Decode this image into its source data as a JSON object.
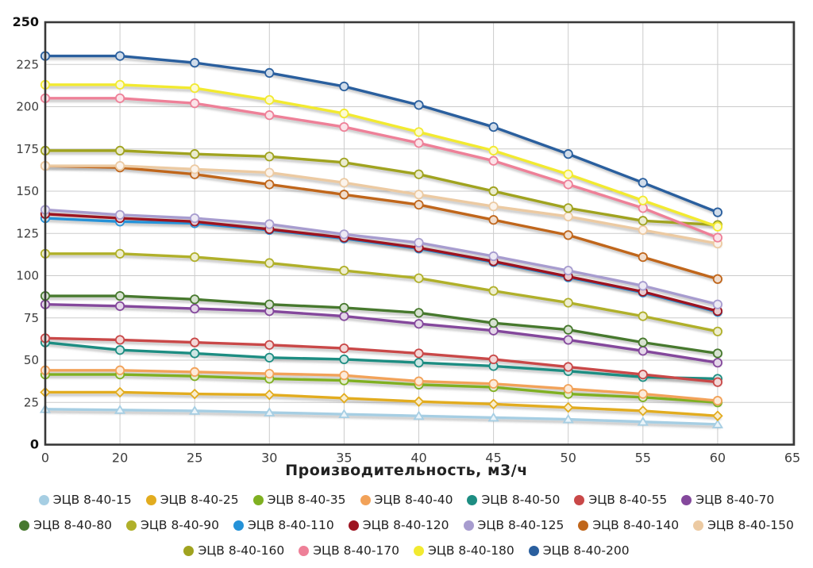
{
  "chart_data": {
    "type": "line",
    "title": "",
    "xlabel": "Производительность, м3/ч",
    "ylabel": "",
    "x": [
      0,
      20,
      25,
      30,
      35,
      40,
      45,
      50,
      55,
      60
    ],
    "x_ticks": [
      0,
      20,
      25,
      30,
      35,
      40,
      45,
      50,
      55,
      60,
      65
    ],
    "ylim": [
      0,
      250
    ],
    "y_tick_step": 25,
    "grid": true,
    "legend_position": "bottom",
    "series": [
      {
        "name": "ЭЦВ 8-40-15",
        "color": "#a6cee3",
        "marker": "triangle",
        "values": [
          21,
          20.5,
          20,
          19,
          18,
          17,
          16,
          15,
          13.5,
          12
        ]
      },
      {
        "name": "ЭЦВ 8-40-25",
        "color": "#e2ac1f",
        "marker": "diamond",
        "values": [
          31,
          31,
          30,
          29.5,
          27.5,
          25.5,
          24,
          22,
          20,
          17
        ]
      },
      {
        "name": "ЭЦВ 8-40-35",
        "color": "#7fb021",
        "marker": "circle",
        "values": [
          41.5,
          41.5,
          40.5,
          39,
          38,
          35.5,
          34,
          30,
          28,
          25
        ]
      },
      {
        "name": "ЭЦВ 8-40-40",
        "color": "#f2a259",
        "marker": "circle",
        "values": [
          44,
          44,
          43,
          42,
          41,
          37.5,
          36,
          33,
          30,
          26
        ]
      },
      {
        "name": "ЭЦВ 8-40-50",
        "color": "#1d8d82",
        "marker": "circle",
        "values": [
          60.5,
          56,
          54,
          51.5,
          50.5,
          48.5,
          46.5,
          43.5,
          40,
          39
        ]
      },
      {
        "name": "ЭЦВ 8-40-55",
        "color": "#c94848",
        "marker": "circle",
        "values": [
          63,
          62,
          60.5,
          59,
          57,
          54,
          50.5,
          46,
          41.5,
          37
        ]
      },
      {
        "name": "ЭЦВ 8-40-70",
        "color": "#84489c",
        "marker": "circle",
        "values": [
          83,
          82,
          80.5,
          79,
          76,
          71.5,
          67.5,
          62,
          55.5,
          48.5
        ]
      },
      {
        "name": "ЭЦВ 8-40-80",
        "color": "#47792e",
        "marker": "circle",
        "values": [
          88,
          88,
          86,
          83,
          81,
          78,
          72,
          68,
          60.5,
          54
        ]
      },
      {
        "name": "ЭЦВ 8-40-90",
        "color": "#b0b02a",
        "marker": "circle",
        "values": [
          113,
          113,
          111,
          107.5,
          103,
          98.5,
          91,
          84,
          76,
          67
        ]
      },
      {
        "name": "ЭЦВ 8-40-110",
        "color": "#2592d8",
        "marker": "circle",
        "values": [
          134,
          132,
          131,
          127,
          122,
          116,
          108,
          99,
          90,
          78.5
        ]
      },
      {
        "name": "ЭЦВ 8-40-120",
        "color": "#9d1420",
        "marker": "circle",
        "values": [
          136.5,
          134,
          132,
          127.5,
          122.5,
          116.5,
          108.5,
          99.5,
          90.5,
          79
        ]
      },
      {
        "name": "ЭЦВ 8-40-125",
        "color": "#a79ccf",
        "marker": "circle",
        "values": [
          139,
          136,
          134,
          130.5,
          124.5,
          119.5,
          111.5,
          103,
          94,
          83
        ]
      },
      {
        "name": "ЭЦВ 8-40-140",
        "color": "#c0661b",
        "marker": "circle",
        "values": [
          165,
          164,
          160,
          154,
          148,
          142,
          133,
          124,
          111,
          98
        ]
      },
      {
        "name": "ЭЦВ 8-40-150",
        "color": "#eccaa2",
        "marker": "circle",
        "values": [
          165,
          165,
          163,
          161,
          155,
          148,
          141,
          135,
          127,
          119
        ]
      },
      {
        "name": "ЭЦВ 8-40-160",
        "color": "#a0a31f",
        "marker": "circle",
        "values": [
          174,
          174,
          172,
          170.5,
          167,
          160,
          150,
          140,
          132.5,
          130
        ]
      },
      {
        "name": "ЭЦВ 8-40-170",
        "color": "#ee8098",
        "marker": "circle",
        "values": [
          205,
          205,
          202,
          195,
          188,
          178.5,
          168,
          154,
          140,
          122.5
        ]
      },
      {
        "name": "ЭЦВ 8-40-180",
        "color": "#f2ea30",
        "marker": "circle",
        "values": [
          213,
          213,
          211,
          204,
          196,
          185,
          174,
          160,
          144.5,
          129
        ]
      },
      {
        "name": "ЭЦВ 8-40-200",
        "color": "#2a5f9e",
        "marker": "circle",
        "values": [
          230,
          230,
          226,
          220,
          212,
          201,
          188,
          172,
          155,
          137.5
        ]
      }
    ]
  }
}
